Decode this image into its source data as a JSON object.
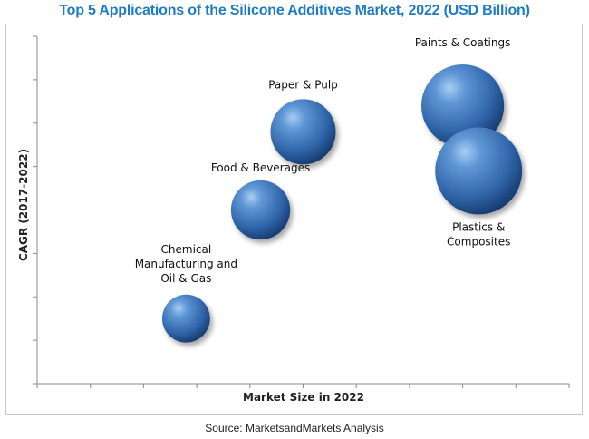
{
  "chart_data": {
    "type": "scatter",
    "title": "Top 5 Applications of the Silicone Additives Market, 2022 (USD Billion)",
    "xlabel": "Market Size in 2022",
    "ylabel": "CAGR (2017-2022)",
    "xlim": [
      0,
      10
    ],
    "ylim": [
      0,
      8
    ],
    "grid": false,
    "tick_labels_shown": false,
    "series": [
      {
        "color": "#3d74b8",
        "points": [
          {
            "label": "Chemical Manufacturing and Oil & Gas",
            "label_lines": [
              "Chemical",
              "Manufacturing and",
              "Oil & Gas"
            ],
            "x": 2.8,
            "y": 1.5,
            "size": 0.55
          },
          {
            "label": "Food & Beverages",
            "label_lines": [
              "Food & Beverages"
            ],
            "x": 4.2,
            "y": 4.0,
            "size": 0.68
          },
          {
            "label": "Paper & Pulp",
            "label_lines": [
              "Paper & Pulp"
            ],
            "x": 5.0,
            "y": 5.8,
            "size": 0.75
          },
          {
            "label": "Paints & Coatings",
            "label_lines": [
              "Paints & Coatings"
            ],
            "x": 8.0,
            "y": 6.4,
            "size": 0.95
          },
          {
            "label": "Plastics & Composites",
            "label_lines": [
              "Plastics &",
              "Composites"
            ],
            "x": 8.3,
            "y": 4.9,
            "size": 1.0
          }
        ]
      }
    ]
  },
  "footer": {
    "source": "Source: MarketsandMarkets Analysis"
  }
}
